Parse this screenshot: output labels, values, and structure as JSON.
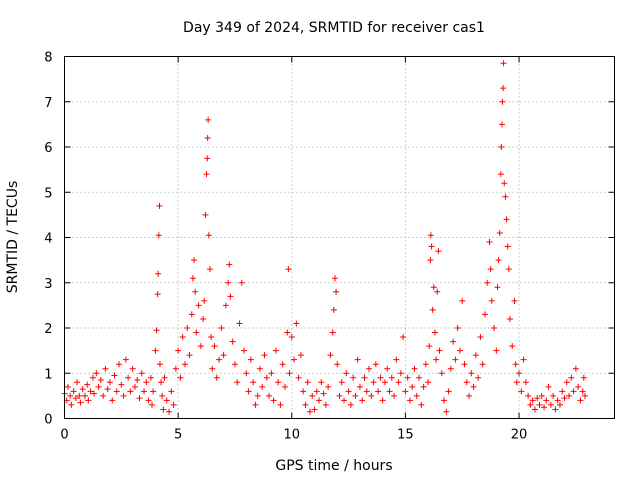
{
  "chart_data": {
    "type": "scatter",
    "title": "Day 349 of 2024, SRMTID for receiver cas1",
    "xlabel": "GPS time / hours",
    "ylabel": "SRMTID / TECUs",
    "xlim": [
      0,
      24.2
    ],
    "ylim": [
      0,
      8
    ],
    "xticks": [
      0,
      5,
      10,
      15,
      20
    ],
    "yticks": [
      0,
      1,
      2,
      3,
      4,
      5,
      6,
      7,
      8
    ],
    "grid": true,
    "marker": "+",
    "series": [
      {
        "name": "cas1",
        "color": "#ff0000",
        "points": [
          [
            0.0,
            0.55
          ],
          [
            0.1,
            0.4
          ],
          [
            0.15,
            0.7
          ],
          [
            0.25,
            0.5
          ],
          [
            0.3,
            0.3
          ],
          [
            0.4,
            0.6
          ],
          [
            0.5,
            0.45
          ],
          [
            0.55,
            0.8
          ],
          [
            0.65,
            0.5
          ],
          [
            0.7,
            0.35
          ],
          [
            0.8,
            0.65
          ],
          [
            0.9,
            0.5
          ],
          [
            1.0,
            0.75
          ],
          [
            1.05,
            0.4
          ],
          [
            1.15,
            0.6
          ],
          [
            1.25,
            0.9
          ],
          [
            1.3,
            0.55
          ],
          [
            1.4,
            1.0
          ],
          [
            1.5,
            0.7
          ],
          [
            1.6,
            0.85
          ],
          [
            1.7,
            0.5
          ],
          [
            1.8,
            1.1
          ],
          [
            1.9,
            0.65
          ],
          [
            2.0,
            0.8
          ],
          [
            2.1,
            0.4
          ],
          [
            2.2,
            0.95
          ],
          [
            2.3,
            0.6
          ],
          [
            2.4,
            1.2
          ],
          [
            2.5,
            0.75
          ],
          [
            2.6,
            0.5
          ],
          [
            2.7,
            1.3
          ],
          [
            2.8,
            0.9
          ],
          [
            2.9,
            0.6
          ],
          [
            3.0,
            1.1
          ],
          [
            3.1,
            0.7
          ],
          [
            3.2,
            0.85
          ],
          [
            3.3,
            0.45
          ],
          [
            3.4,
            1.0
          ],
          [
            3.5,
            0.6
          ],
          [
            3.6,
            0.8
          ],
          [
            3.7,
            0.4
          ],
          [
            3.8,
            0.9
          ],
          [
            3.85,
            0.3
          ],
          [
            3.9,
            0.6
          ],
          [
            4.0,
            1.5
          ],
          [
            4.05,
            1.95
          ],
          [
            4.1,
            2.75
          ],
          [
            4.12,
            3.2
          ],
          [
            4.15,
            4.05
          ],
          [
            4.18,
            4.7
          ],
          [
            4.2,
            1.2
          ],
          [
            4.25,
            0.8
          ],
          [
            4.3,
            0.5
          ],
          [
            4.35,
            0.2
          ],
          [
            4.4,
            0.9
          ],
          [
            4.5,
            0.4
          ],
          [
            4.6,
            0.15
          ],
          [
            4.7,
            0.6
          ],
          [
            4.8,
            0.3
          ],
          [
            4.9,
            1.1
          ],
          [
            5.0,
            1.5
          ],
          [
            5.1,
            0.9
          ],
          [
            5.2,
            1.8
          ],
          [
            5.3,
            1.2
          ],
          [
            5.4,
            2.0
          ],
          [
            5.5,
            1.4
          ],
          [
            5.6,
            2.3
          ],
          [
            5.65,
            3.1
          ],
          [
            5.7,
            3.5
          ],
          [
            5.75,
            2.8
          ],
          [
            5.8,
            1.9
          ],
          [
            5.9,
            2.5
          ],
          [
            6.0,
            1.6
          ],
          [
            6.1,
            2.2
          ],
          [
            6.15,
            2.6
          ],
          [
            6.2,
            4.5
          ],
          [
            6.25,
            5.4
          ],
          [
            6.28,
            5.75
          ],
          [
            6.3,
            6.2
          ],
          [
            6.32,
            6.6
          ],
          [
            6.35,
            4.05
          ],
          [
            6.4,
            3.3
          ],
          [
            6.45,
            1.8
          ],
          [
            6.5,
            1.1
          ],
          [
            6.6,
            1.6
          ],
          [
            6.7,
            0.9
          ],
          [
            6.8,
            1.3
          ],
          [
            6.9,
            2.0
          ],
          [
            7.0,
            1.4
          ],
          [
            7.1,
            2.5
          ],
          [
            7.2,
            3.0
          ],
          [
            7.25,
            3.4
          ],
          [
            7.3,
            2.7
          ],
          [
            7.4,
            1.7
          ],
          [
            7.5,
            1.2
          ],
          [
            7.6,
            0.8
          ],
          [
            7.7,
            2.1
          ],
          [
            7.8,
            3.0
          ],
          [
            7.9,
            1.5
          ],
          [
            8.0,
            1.0
          ],
          [
            8.1,
            0.6
          ],
          [
            8.2,
            1.3
          ],
          [
            8.3,
            0.8
          ],
          [
            8.4,
            0.3
          ],
          [
            8.5,
            0.5
          ],
          [
            8.6,
            1.1
          ],
          [
            8.7,
            0.7
          ],
          [
            8.8,
            1.4
          ],
          [
            8.9,
            0.9
          ],
          [
            9.0,
            0.5
          ],
          [
            9.1,
            1.0
          ],
          [
            9.2,
            0.4
          ],
          [
            9.3,
            1.5
          ],
          [
            9.4,
            0.8
          ],
          [
            9.5,
            0.3
          ],
          [
            9.6,
            1.2
          ],
          [
            9.7,
            0.7
          ],
          [
            9.8,
            1.9
          ],
          [
            9.85,
            3.3
          ],
          [
            9.9,
            1.0
          ],
          [
            10.0,
            1.8
          ],
          [
            10.1,
            1.3
          ],
          [
            10.2,
            2.1
          ],
          [
            10.3,
            0.9
          ],
          [
            10.4,
            1.4
          ],
          [
            10.5,
            0.6
          ],
          [
            10.6,
            0.3
          ],
          [
            10.7,
            0.8
          ],
          [
            10.8,
            0.15
          ],
          [
            10.9,
            0.5
          ],
          [
            11.0,
            0.2
          ],
          [
            11.1,
            0.6
          ],
          [
            11.2,
            0.4
          ],
          [
            11.3,
            0.8
          ],
          [
            11.4,
            0.55
          ],
          [
            11.5,
            0.3
          ],
          [
            11.6,
            0.7
          ],
          [
            11.7,
            1.4
          ],
          [
            11.8,
            1.9
          ],
          [
            11.85,
            2.4
          ],
          [
            11.9,
            3.1
          ],
          [
            11.95,
            2.8
          ],
          [
            12.0,
            1.2
          ],
          [
            12.1,
            0.5
          ],
          [
            12.2,
            0.8
          ],
          [
            12.3,
            0.4
          ],
          [
            12.4,
            1.0
          ],
          [
            12.5,
            0.6
          ],
          [
            12.6,
            0.3
          ],
          [
            12.7,
            0.9
          ],
          [
            12.8,
            0.5
          ],
          [
            12.9,
            1.3
          ],
          [
            13.0,
            0.7
          ],
          [
            13.1,
            0.4
          ],
          [
            13.2,
            0.9
          ],
          [
            13.3,
            0.6
          ],
          [
            13.4,
            1.1
          ],
          [
            13.5,
            0.5
          ],
          [
            13.6,
            0.8
          ],
          [
            13.7,
            1.2
          ],
          [
            13.8,
            0.6
          ],
          [
            13.9,
            0.9
          ],
          [
            14.0,
            0.4
          ],
          [
            14.1,
            0.8
          ],
          [
            14.2,
            1.1
          ],
          [
            14.3,
            0.6
          ],
          [
            14.4,
            0.9
          ],
          [
            14.5,
            0.5
          ],
          [
            14.6,
            1.3
          ],
          [
            14.7,
            0.8
          ],
          [
            14.8,
            1.0
          ],
          [
            14.9,
            1.8
          ],
          [
            15.0,
            0.6
          ],
          [
            15.1,
            0.9
          ],
          [
            15.2,
            0.4
          ],
          [
            15.3,
            0.7
          ],
          [
            15.4,
            1.1
          ],
          [
            15.5,
            0.5
          ],
          [
            15.6,
            0.9
          ],
          [
            15.7,
            0.3
          ],
          [
            15.8,
            0.7
          ],
          [
            15.9,
            1.2
          ],
          [
            16.0,
            0.8
          ],
          [
            16.05,
            1.6
          ],
          [
            16.1,
            3.5
          ],
          [
            16.12,
            4.05
          ],
          [
            16.15,
            3.8
          ],
          [
            16.2,
            2.4
          ],
          [
            16.25,
            2.9
          ],
          [
            16.3,
            1.9
          ],
          [
            16.35,
            1.3
          ],
          [
            16.4,
            2.8
          ],
          [
            16.45,
            3.7
          ],
          [
            16.5,
            1.5
          ],
          [
            16.6,
            1.0
          ],
          [
            16.7,
            0.4
          ],
          [
            16.8,
            0.15
          ],
          [
            16.9,
            0.6
          ],
          [
            17.0,
            1.1
          ],
          [
            17.1,
            1.7
          ],
          [
            17.2,
            1.3
          ],
          [
            17.3,
            2.0
          ],
          [
            17.4,
            1.5
          ],
          [
            17.5,
            2.6
          ],
          [
            17.6,
            1.2
          ],
          [
            17.7,
            0.8
          ],
          [
            17.8,
            0.5
          ],
          [
            17.9,
            1.0
          ],
          [
            18.0,
            0.7
          ],
          [
            18.1,
            1.4
          ],
          [
            18.2,
            0.9
          ],
          [
            18.3,
            1.8
          ],
          [
            18.4,
            1.2
          ],
          [
            18.5,
            2.3
          ],
          [
            18.6,
            3.0
          ],
          [
            18.7,
            3.9
          ],
          [
            18.75,
            3.3
          ],
          [
            18.8,
            2.6
          ],
          [
            18.9,
            2.0
          ],
          [
            19.0,
            1.5
          ],
          [
            19.05,
            2.9
          ],
          [
            19.1,
            3.5
          ],
          [
            19.15,
            4.1
          ],
          [
            19.2,
            5.4
          ],
          [
            19.22,
            6.0
          ],
          [
            19.25,
            6.5
          ],
          [
            19.27,
            7.0
          ],
          [
            19.3,
            7.3
          ],
          [
            19.32,
            7.85
          ],
          [
            19.35,
            5.2
          ],
          [
            19.4,
            4.9
          ],
          [
            19.45,
            4.4
          ],
          [
            19.5,
            3.8
          ],
          [
            19.55,
            3.3
          ],
          [
            19.6,
            2.2
          ],
          [
            19.7,
            1.6
          ],
          [
            19.8,
            2.6
          ],
          [
            19.85,
            1.2
          ],
          [
            19.9,
            0.8
          ],
          [
            20.0,
            1.0
          ],
          [
            20.1,
            0.6
          ],
          [
            20.2,
            1.3
          ],
          [
            20.3,
            0.8
          ],
          [
            20.4,
            0.5
          ],
          [
            20.5,
            0.3
          ],
          [
            20.6,
            0.4
          ],
          [
            20.7,
            0.2
          ],
          [
            20.8,
            0.45
          ],
          [
            20.9,
            0.3
          ],
          [
            21.0,
            0.5
          ],
          [
            21.1,
            0.25
          ],
          [
            21.2,
            0.4
          ],
          [
            21.3,
            0.7
          ],
          [
            21.4,
            0.3
          ],
          [
            21.5,
            0.5
          ],
          [
            21.6,
            0.2
          ],
          [
            21.7,
            0.4
          ],
          [
            21.8,
            0.3
          ],
          [
            21.9,
            0.6
          ],
          [
            22.0,
            0.45
          ],
          [
            22.1,
            0.8
          ],
          [
            22.2,
            0.5
          ],
          [
            22.3,
            0.9
          ],
          [
            22.4,
            0.6
          ],
          [
            22.5,
            1.1
          ],
          [
            22.6,
            0.7
          ],
          [
            22.7,
            0.4
          ],
          [
            22.8,
            0.6
          ],
          [
            22.85,
            0.9
          ],
          [
            22.9,
            0.5
          ]
        ]
      }
    ]
  }
}
